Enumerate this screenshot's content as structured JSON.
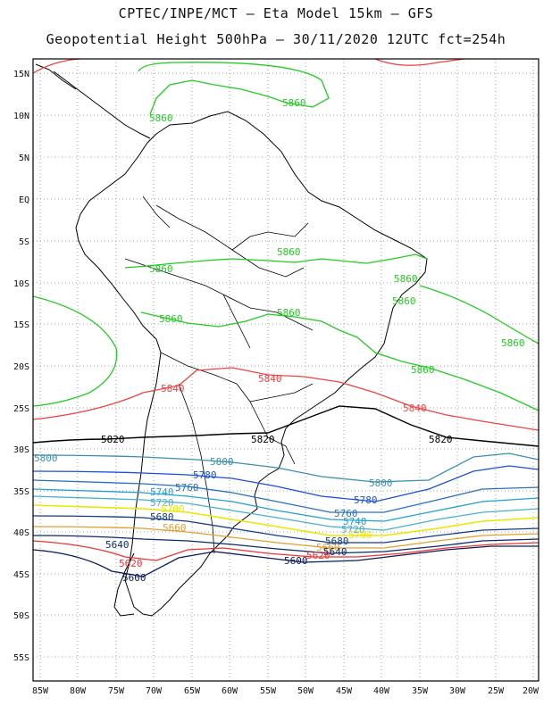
{
  "title_line1": "CPTEC/INPE/MCT –  Eta Model 15km – GFS",
  "title_line2": "Geopotential Height 500hPa – 30/11/2020 12UTC fct=254h",
  "lat_ticks": [
    "15N",
    "10N",
    "5N",
    "EQ",
    "5S",
    "10S",
    "15S",
    "20S",
    "25S",
    "30S",
    "35S",
    "40S",
    "45S",
    "50S",
    "55S"
  ],
  "lon_ticks": [
    "85W",
    "80W",
    "75W",
    "70W",
    "65W",
    "60W",
    "55W",
    "50W",
    "45W",
    "40W",
    "35W",
    "30W",
    "25W",
    "20W"
  ],
  "contour_labels": {
    "l5860_a": "5860",
    "l5860_b": "5860",
    "l5860_c": "5860",
    "l5860_d": "5860",
    "l5860_e": "5860",
    "l5860_f": "5860",
    "l5860_g": "5860",
    "l5860_h": "5860",
    "l5860_i": "5860",
    "l5860_j": "5860",
    "l5860_k": "5860",
    "l5840_a": "5840",
    "l5840_b": "5840",
    "l5840_c": "5840",
    "l5820_a": "5820",
    "l5820_b": "5820",
    "l5820_c": "5820",
    "l5800_a": "5800",
    "l5800_b": "5800",
    "l5800_c": "5800",
    "l5780_a": "5780",
    "l5780_b": "5780",
    "l5760_a": "5760",
    "l5760_b": "5760",
    "l5740_a": "5740",
    "l5740_b": "5740",
    "l5720_a": "5720",
    "l5720_b": "5720",
    "l5700_a": "5700",
    "l5700_b": "5700",
    "l5680_a": "5680",
    "l5680_b": "5680",
    "l5660_a": "5660",
    "l5660_b": "5660",
    "l5640_a": "5640",
    "l5640_b": "5640",
    "l5620_a": "5620",
    "l5620_b": "5620",
    "l5600_a": "5600",
    "l5600_b": "5600"
  },
  "colors": {
    "c5860": "#22cc22",
    "c5840": "#ee4444",
    "c5820": "#000000",
    "c5800": "#3a8fb0",
    "c5780": "#1a4fd8",
    "c5760": "#2a70c0",
    "c5740": "#22a0d0",
    "c5720": "#4ab0c8",
    "c5700": "#e8e800",
    "c5680": "#153a8a",
    "c5660": "#e0a030",
    "c5640": "#0a2a6a",
    "c5620": "#ee3333",
    "c5600": "#0a1a5a"
  }
}
